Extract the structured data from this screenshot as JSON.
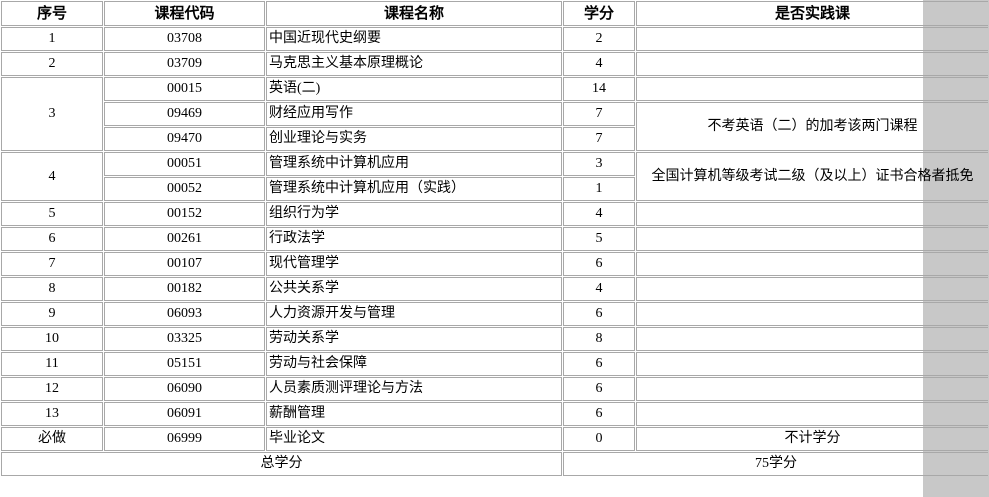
{
  "table": {
    "headers": [
      "序号",
      "课程代码",
      "课程名称",
      "学分",
      "是否实践课"
    ],
    "rows": [
      {
        "no": "1",
        "code": "03708",
        "name": "中国近现代史纲要",
        "credit": "2"
      },
      {
        "no": "2",
        "code": "03709",
        "name": "马克思主义基本原理概论",
        "credit": "4"
      },
      {
        "no": "3",
        "code": "00015",
        "name": "英语(二)",
        "credit": "14"
      },
      {
        "no": "",
        "code": "09469",
        "name": "财经应用写作",
        "credit": "7"
      },
      {
        "no": "",
        "code": "09470",
        "name": "创业理论与实务",
        "credit": "7"
      },
      {
        "no": "4",
        "code": "00051",
        "name": "管理系统中计算机应用",
        "credit": "3"
      },
      {
        "no": "",
        "code": "00052",
        "name": "管理系统中计算机应用（实践）",
        "credit": "1"
      },
      {
        "no": "5",
        "code": "00152",
        "name": "组织行为学",
        "credit": "4"
      },
      {
        "no": "6",
        "code": "00261",
        "name": "行政法学",
        "credit": "5"
      },
      {
        "no": "7",
        "code": "00107",
        "name": "现代管理学",
        "credit": "6"
      },
      {
        "no": "8",
        "code": "00182",
        "name": "公共关系学",
        "credit": "4"
      },
      {
        "no": "9",
        "code": "06093",
        "name": "人力资源开发与管理",
        "credit": "6"
      },
      {
        "no": "10",
        "code": "03325",
        "name": "劳动关系学",
        "credit": "8"
      },
      {
        "no": "11",
        "code": "05151",
        "name": "劳动与社会保障",
        "credit": "6"
      },
      {
        "no": "12",
        "code": "06090",
        "name": "人员素质测评理论与方法",
        "credit": "6"
      },
      {
        "no": "13",
        "code": "06091",
        "name": "薪酬管理",
        "credit": "6"
      },
      {
        "no": "必做",
        "code": "06999",
        "name": "毕业论文",
        "credit": "0"
      }
    ],
    "notes": {
      "english_alt": "不考英语（二）的加考该两门课程",
      "computer_exempt": "全国计算机等级考试二级（及以上）证书合格者抵免",
      "thesis": "不计学分"
    },
    "total_label": "总学分",
    "total_value": "75学分"
  },
  "colors": {
    "border": "#a8a8a8",
    "side_band": "#c8c8c8"
  }
}
